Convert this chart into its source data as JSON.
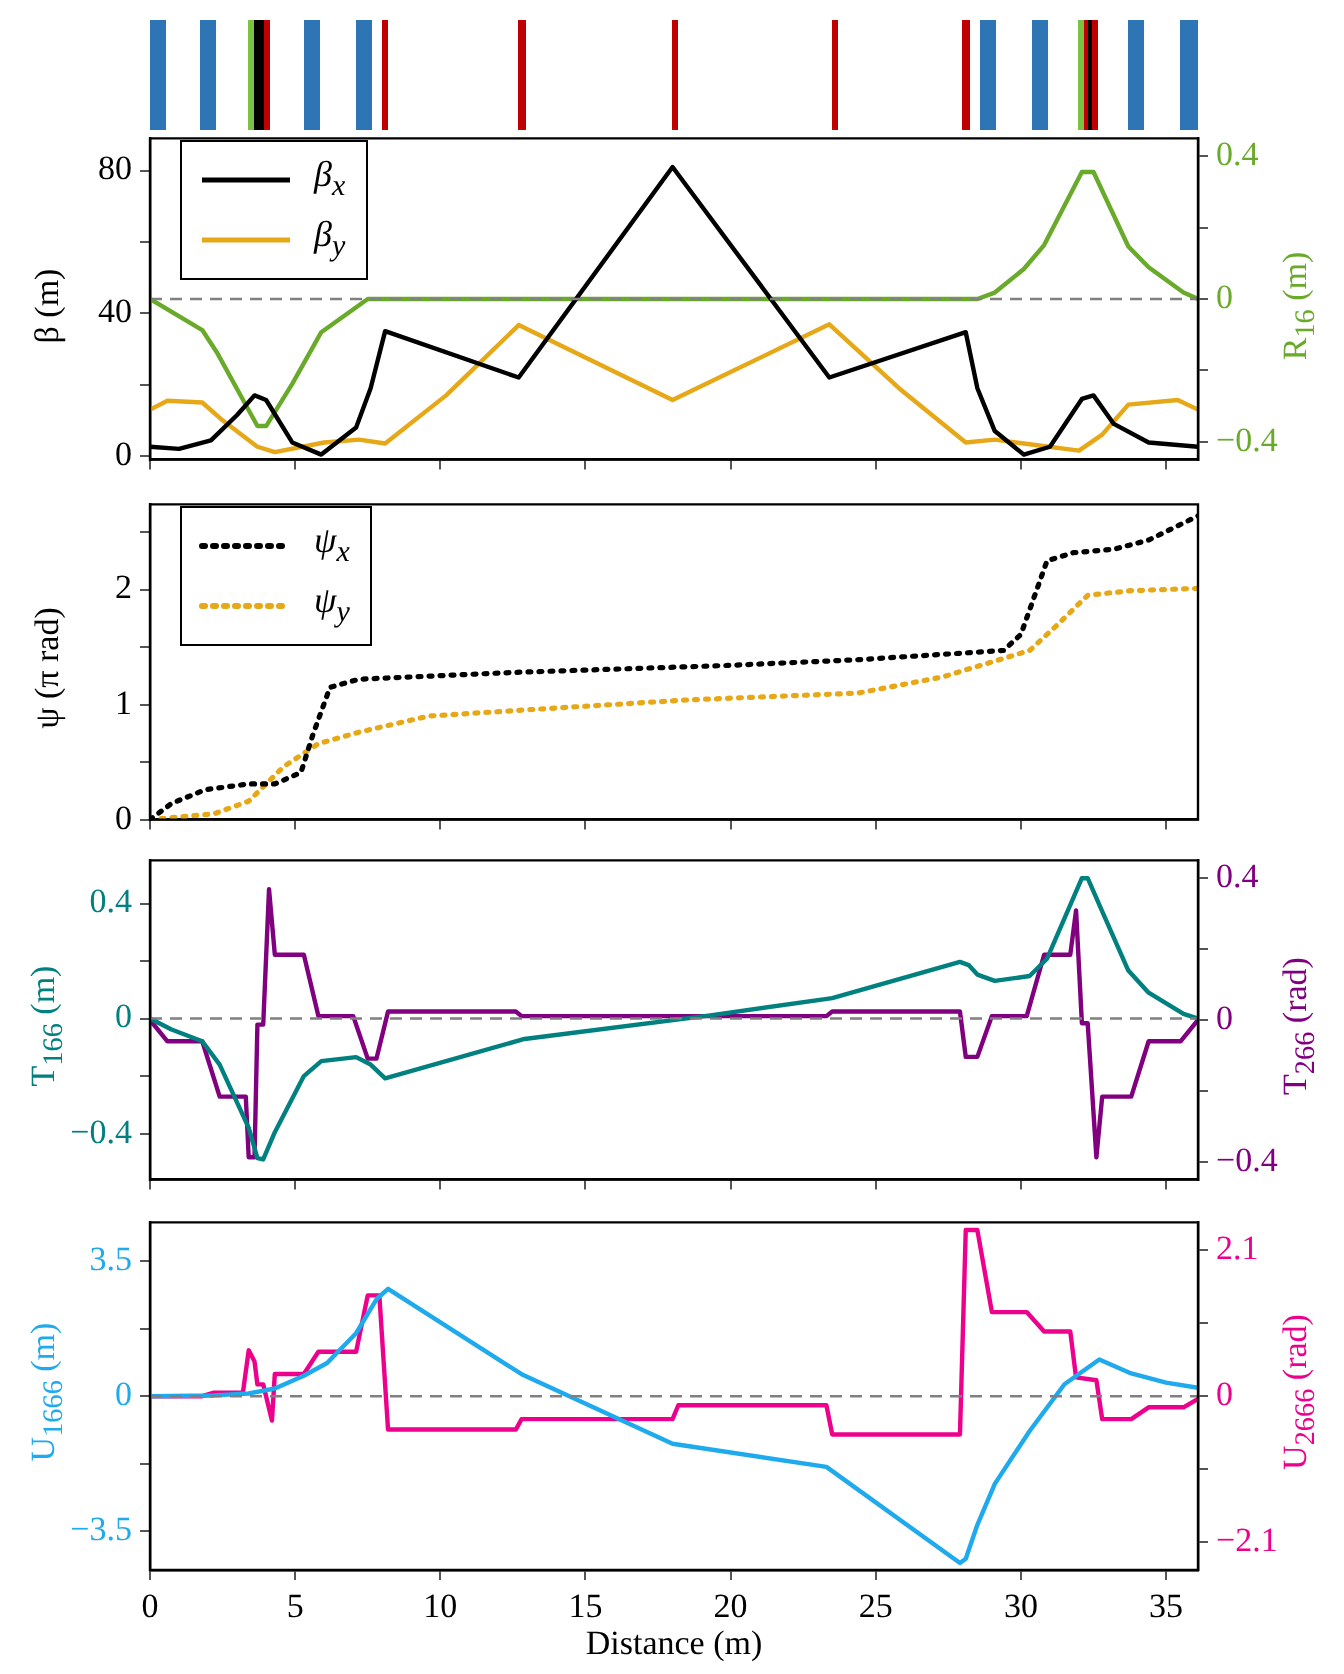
{
  "chart_data": [
    {
      "type": "line",
      "ylabel": "β (m)",
      "y2label": "R$_{16}$ (m)",
      "xlim": [
        0,
        36.1
      ],
      "xticks": [
        0,
        5,
        10,
        15,
        20,
        25,
        30,
        35
      ],
      "ylim": [
        -1,
        89
      ],
      "yticks": [
        0,
        {
          "value": 20,
          "label": null
        },
        40,
        {
          "value": 60,
          "label": null
        },
        80
      ],
      "y2lim": [
        -0.45,
        0.45
      ],
      "y2ticks": [
        {
          "value": -0.4,
          "label": "−0.4"
        },
        {
          "value": -0.2,
          "label": null
        },
        0,
        {
          "value": 0.2,
          "label": null
        },
        0.4
      ],
      "tick_labels": "y",
      "grid": false,
      "legend": "top left",
      "marker": "none",
      "line_style": "solid",
      "ref_lines": [
        {
          "axis": "y2",
          "value": 0,
          "color": "#808080",
          "line_style": "dashed"
        }
      ],
      "series": [
        {
          "name": "β$_{x}$",
          "color": "#000000",
          "x": [
            0,
            1.0,
            2.1,
            3.0,
            3.6,
            4.0,
            4.9,
            5.9,
            7.1,
            7.6,
            8.1,
            12.7,
            18.0,
            23.4,
            28.1,
            28.5,
            29.1,
            30.1,
            31.0,
            32.1,
            32.5,
            33.2,
            34.4,
            36.1
          ],
          "values": [
            2.6,
            2,
            4.4,
            11.5,
            17,
            15.7,
            3.8,
            0.4,
            8,
            19,
            35,
            22,
            81,
            22,
            34.7,
            19,
            7,
            0.4,
            2.6,
            16,
            17,
            9,
            3.8,
            2.6
          ]
        },
        {
          "name": "β$_{y}$",
          "color": "#e6a817",
          "x": [
            0,
            0.6,
            1.8,
            2.5,
            3.7,
            4.3,
            6.0,
            7.2,
            8.1,
            10.2,
            12.7,
            18.0,
            23.4,
            25.8,
            28.1,
            29.1,
            30.3,
            32.0,
            32.8,
            33.7,
            35.4,
            36.1
          ],
          "values": [
            13,
            15.5,
            15,
            10,
            2.6,
            1.1,
            3.8,
            4.6,
            3.5,
            17,
            36.7,
            15.7,
            36.9,
            19,
            3.8,
            4.6,
            3.3,
            1.5,
            6,
            14.4,
            15.7,
            13
          ]
        },
        {
          "color": "#6aaa2a",
          "axis": "y2",
          "x": [
            0,
            1.8,
            2.3,
            3.7,
            4.0,
            4.9,
            5.9,
            7.5,
            28.5,
            29.1,
            30.1,
            30.8,
            32.1,
            32.5,
            33.7,
            34.4,
            35.6,
            36.1
          ],
          "values": [
            0,
            -0.087,
            -0.149,
            -0.356,
            -0.356,
            -0.238,
            -0.093,
            0,
            0,
            0.018,
            0.084,
            0.151,
            0.356,
            0.356,
            0.147,
            0.089,
            0.018,
            0
          ]
        }
      ]
    },
    {
      "type": "line",
      "ylabel": "ψ (π rad)",
      "xlim": [
        0,
        36.1
      ],
      "xticks": [
        0,
        5,
        10,
        15,
        20,
        25,
        30,
        35
      ],
      "ylim": [
        0,
        2.74
      ],
      "yticks": [
        0,
        {
          "value": 0.5,
          "label": null
        },
        1,
        {
          "value": 1.5,
          "label": null
        },
        2,
        {
          "value": 2.5,
          "label": null
        }
      ],
      "tick_labels": "y",
      "grid": false,
      "legend": "top left",
      "marker": "none",
      "line_style": "dotted",
      "series": [
        {
          "name": "ψ$_{x}$",
          "color": "#000000",
          "x": [
            0,
            0.74,
            1.9,
            3.4,
            4.3,
            5.2,
            5.6,
            6.2,
            7.2,
            12.6,
            19.9,
            24.4,
            29.4,
            30.0,
            30.9,
            31.8,
            33.2,
            34.4,
            36.1
          ],
          "values": [
            0,
            0.14,
            0.26,
            0.31,
            0.31,
            0.41,
            0.73,
            1.15,
            1.22,
            1.28,
            1.34,
            1.39,
            1.47,
            1.61,
            2.25,
            2.32,
            2.35,
            2.43,
            2.64
          ]
        },
        {
          "name": "ψ$_{y}$",
          "color": "#e6a817",
          "x": [
            0,
            2.2,
            3.4,
            4.6,
            5.8,
            7.2,
            9.6,
            14.0,
            18.5,
            24.4,
            27.3,
            30.3,
            31.2,
            32.3,
            33.8,
            36.1
          ],
          "values": [
            0,
            0.05,
            0.16,
            0.46,
            0.66,
            0.76,
            0.9,
            0.97,
            1.04,
            1.1,
            1.24,
            1.47,
            1.68,
            1.95,
            1.99,
            2.01
          ]
        }
      ]
    },
    {
      "type": "line",
      "ylabel": "T$_{166}$ (m)",
      "y2label": "T$_{266}$ (rad)",
      "xlim": [
        0,
        36.1
      ],
      "xticks": [
        0,
        5,
        10,
        15,
        20,
        25,
        30,
        35
      ],
      "ylim": [
        -0.56,
        0.55
      ],
      "yticks": [
        {
          "value": -0.4,
          "label": "−0.4"
        },
        {
          "value": -0.2,
          "label": null
        },
        0,
        {
          "value": 0.2,
          "label": null
        },
        0.4
      ],
      "y2lim": [
        -0.45,
        0.45
      ],
      "y2ticks": [
        {
          "value": -0.4,
          "label": "−0.4"
        },
        {
          "value": -0.2,
          "label": null
        },
        0,
        {
          "value": 0.2,
          "label": null
        },
        0.4
      ],
      "tick_labels": "y",
      "grid": false,
      "marker": "none",
      "line_style": "solid",
      "ref_lines": [
        {
          "axis": "y",
          "value": 0,
          "color": "#808080",
          "line_style": "dashed"
        }
      ],
      "series": [
        {
          "color": "#00807f",
          "x": [
            0,
            0.74,
            1.8,
            2.4,
            3.4,
            3.7,
            3.9,
            4.3,
            5.3,
            5.9,
            7.1,
            7.6,
            8.1,
            12.9,
            19.3,
            23.5,
            27.9,
            28.2,
            28.5,
            29.1,
            30.3,
            30.9,
            32.1,
            32.3,
            32.8,
            33.7,
            34.4,
            35.6,
            36.1
          ],
          "values": [
            0,
            -0.038,
            -0.079,
            -0.16,
            -0.38,
            -0.485,
            -0.49,
            -0.395,
            -0.2,
            -0.148,
            -0.134,
            -0.16,
            -0.208,
            -0.071,
            0.011,
            0.071,
            0.197,
            0.186,
            0.153,
            0.131,
            0.148,
            0.208,
            0.488,
            0.488,
            0.373,
            0.167,
            0.09,
            0.016,
            0
          ]
        },
        {
          "color": "#800080",
          "axis": "y2",
          "x": [
            0,
            0.6,
            1.8,
            2.4,
            3.3,
            3.4,
            3.6,
            3.7,
            3.9,
            4.1,
            4.3,
            5.3,
            5.8,
            7.0,
            7.5,
            7.8,
            8.2,
            12.6,
            12.8,
            23.3,
            23.5,
            27.9,
            28.1,
            28.5,
            29.0,
            30.2,
            30.8,
            31.7,
            31.9,
            32.1,
            32.3,
            32.6,
            32.8,
            33.8,
            34.4,
            35.5,
            36.1
          ],
          "values": [
            0,
            -0.06,
            -0.06,
            -0.216,
            -0.216,
            -0.387,
            -0.387,
            -0.013,
            -0.013,
            0.369,
            0.184,
            0.184,
            0.011,
            0.011,
            -0.109,
            -0.109,
            0.024,
            0.024,
            0.011,
            0.011,
            0.024,
            0.024,
            -0.104,
            -0.104,
            0.011,
            0.011,
            0.184,
            0.184,
            0.309,
            -0.009,
            -0.009,
            -0.387,
            -0.216,
            -0.216,
            -0.06,
            -0.06,
            0
          ]
        }
      ]
    },
    {
      "type": "line",
      "xlabel": "Distance (m)",
      "ylabel": "U$_{1666}$ (m)",
      "y2label": "U$_{2666}$ (rad)",
      "xlim": [
        0,
        36.1
      ],
      "xticks": [
        0,
        5,
        10,
        15,
        20,
        25,
        30,
        35
      ],
      "ylim": [
        -4.5,
        4.5
      ],
      "yticks": [
        {
          "value": -3.5,
          "label": "−3.5"
        },
        {
          "value": -1.75,
          "label": null
        },
        0,
        {
          "value": 1.75,
          "label": null
        },
        3.5
      ],
      "y2lim": [
        -2.5,
        2.5
      ],
      "y2ticks": [
        {
          "value": -2.1,
          "label": "−2.1"
        },
        {
          "value": -1.05,
          "label": null
        },
        0,
        {
          "value": 1.05,
          "label": null
        },
        2.1
      ],
      "grid": false,
      "marker": "none",
      "line_style": "solid",
      "ref_lines": [
        {
          "axis": "y",
          "value": 0,
          "color": "#808080",
          "line_style": "dashed"
        }
      ],
      "series": [
        {
          "color": "#1eaaec",
          "x": [
            0,
            2.2,
            3.4,
            4.3,
            5.3,
            6.1,
            7.1,
            7.8,
            8.2,
            12.8,
            18.0,
            23.3,
            27.9,
            28.1,
            28.5,
            29.1,
            30.3,
            31.5,
            32.7,
            33.8,
            35.0,
            36.1
          ],
          "values": [
            0,
            0.02,
            0.07,
            0.2,
            0.53,
            0.86,
            1.63,
            2.51,
            2.78,
            0.57,
            -1.23,
            -1.83,
            -4.32,
            -4.21,
            -3.33,
            -2.27,
            -0.9,
            0.31,
            0.95,
            0.59,
            0.35,
            0.22
          ]
        },
        {
          "color": "#ec008c",
          "axis": "y2",
          "x": [
            0,
            1.8,
            2.2,
            3.2,
            3.4,
            3.6,
            3.7,
            3.9,
            4.2,
            4.3,
            5.3,
            5.8,
            7.1,
            7.5,
            7.9,
            8.2,
            12.6,
            12.8,
            18.0,
            18.2,
            23.3,
            23.5,
            27.9,
            28.1,
            28.5,
            29.0,
            30.2,
            30.8,
            31.7,
            31.9,
            32.6,
            32.8,
            33.8,
            34.4,
            35.6,
            36.1
          ],
          "values": [
            0,
            0,
            0.05,
            0.05,
            0.66,
            0.5,
            0.17,
            0.17,
            -0.35,
            0.32,
            0.32,
            0.64,
            0.64,
            1.45,
            1.45,
            -0.48,
            -0.48,
            -0.33,
            -0.33,
            -0.13,
            -0.13,
            -0.55,
            -0.55,
            2.39,
            2.39,
            1.21,
            1.21,
            0.93,
            0.93,
            0.27,
            0.23,
            -0.33,
            -0.33,
            -0.16,
            -0.16,
            -0.04
          ]
        }
      ]
    }
  ]
}
